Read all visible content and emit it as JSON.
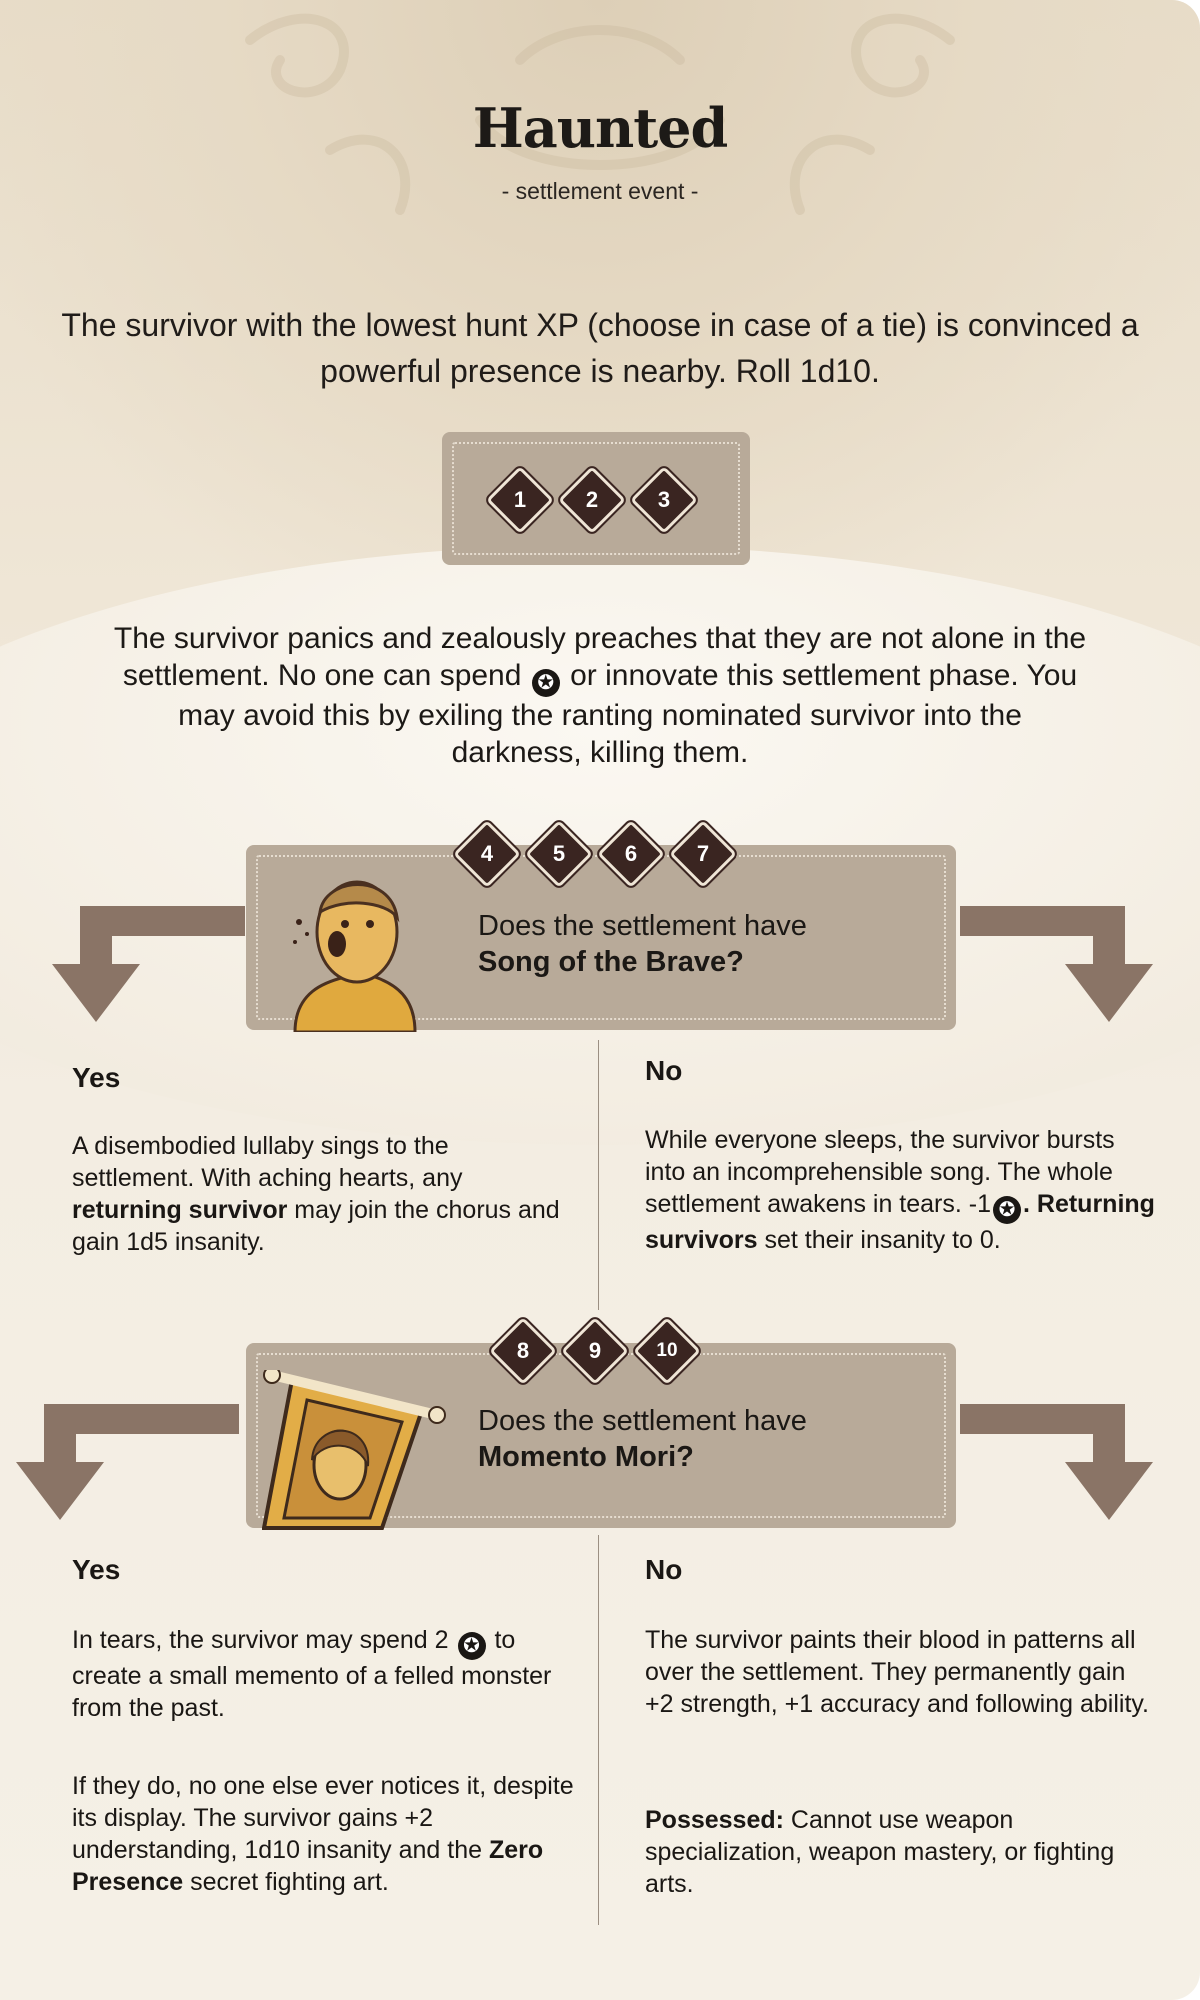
{
  "card": {
    "title": "Haunted",
    "subtitle": "- settlement event -",
    "intro": "The survivor with the lowest hunt XP (choose in case of a tie) is convinced a powerful presence is nearby. Roll 1d10."
  },
  "roll_1_3": {
    "numbers": [
      "1",
      "2",
      "3"
    ],
    "text": "The survivor panics and zealously preaches that they are not alone in the settlement. No one can spend",
    "text_star": "star-icon",
    "text_after": "or innovate this settlement phase. You may avoid this by exiling the ranting nominated survivor into the darkness, killing them."
  },
  "roll_4_7": {
    "numbers": [
      "4",
      "5",
      "6",
      "7"
    ],
    "question": "Does the settlement have",
    "question_bold": "Song of the Brave?",
    "portrait": "screaming-survivor-portrait",
    "yes": {
      "label": "Yes",
      "text_1": "A disembodied lullaby sings to the settlement. With aching hearts, any",
      "text_bold": "returning survivor",
      "text_2": "may join the chorus and gain 1d5 insanity."
    },
    "no": {
      "label": "No",
      "text_1": "While everyone sleeps, the survivor bursts into an incomprehensible song. The whole settlement awakens in tears. -1",
      "text_bold": ". Returning survivors",
      "text_2": "set their insanity to 0."
    }
  },
  "roll_8_10": {
    "numbers": [
      "8",
      "9",
      "10"
    ],
    "question": "Does the settlement have",
    "question_bold": "Momento Mori?",
    "portrait": "framed-portrait-bones",
    "yes": {
      "label": "Yes",
      "text_1a": "In tears, the survivor may spend 2",
      "text_1b": "to create a small memento of a felled monster from the past.",
      "text_2": "If they do, no one else ever notices it, despite its display. The survivor gains +2 understanding, 1d10 insanity and the",
      "text_bold": "Zero Presence",
      "text_3": "secret fighting art."
    },
    "no": {
      "label": "No",
      "text_1": "The survivor paints their blood in patterns all over the settlement. They permanently gain +2  strength, +1 accuracy and following ability.",
      "bold_label": "Possessed:",
      "text_2": "Cannot use weapon specialization, weapon mastery, or fighting arts."
    }
  },
  "colors": {
    "box": "#b8aa99",
    "diamond": "#3a2521",
    "arrow": "#8a7466"
  }
}
